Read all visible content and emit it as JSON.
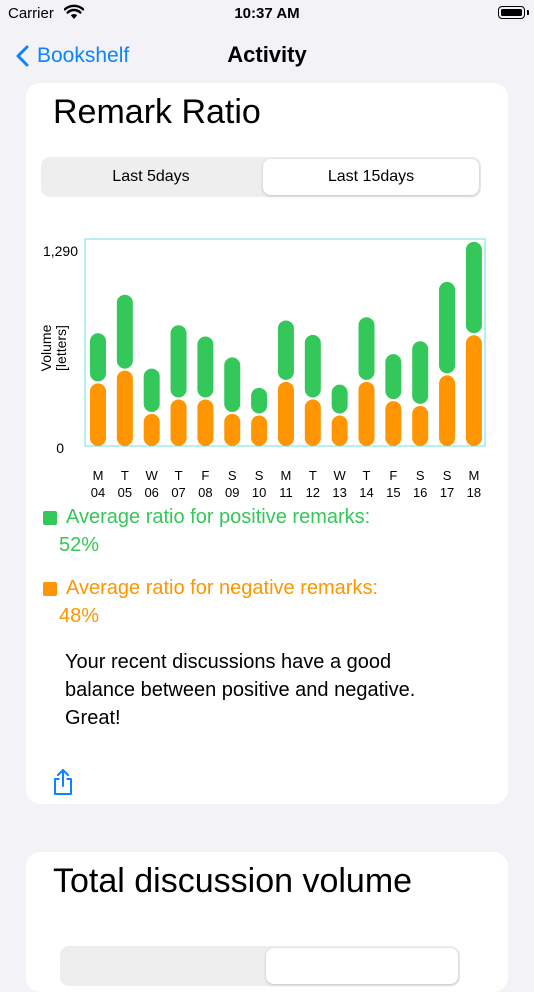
{
  "status_bar": {
    "carrier": "Carrier",
    "time": "10:37 AM"
  },
  "nav": {
    "back_label": "Bookshelf",
    "title": "Activity"
  },
  "remark_card": {
    "title": "Remark Ratio",
    "tabs": [
      {
        "label": "Last 5days",
        "selected": false
      },
      {
        "label": "Last 15days",
        "selected": true
      }
    ],
    "legend": {
      "positive_label": "Average ratio for positive remarks:",
      "positive_value": "52%",
      "negative_label": "Average ratio for negative remarks:",
      "negative_value": "48%"
    },
    "summary": "Your recent discussions have a good balance between positive and negative. Great!"
  },
  "volume_card": {
    "title": "Total discussion volume"
  },
  "colors": {
    "positive": "#34C759",
    "negative": "#FF9500",
    "accent": "#0A84FF",
    "plot_border": "#6FE1E1"
  },
  "chart_data": {
    "type": "bar",
    "stacked": true,
    "ylabel": "Volume [letters]",
    "ylim": [
      0,
      1290
    ],
    "ytick_labels": [
      "1,290",
      "0"
    ],
    "categories": [
      "M 04",
      "T 05",
      "W 06",
      "T 07",
      "F 08",
      "S 09",
      "S 10",
      "M 11",
      "T 12",
      "W 13",
      "T 14",
      "F 15",
      "S 16",
      "S 17",
      "M 18"
    ],
    "x_day_letters": [
      "M",
      "T",
      "W",
      "T",
      "F",
      "S",
      "S",
      "M",
      "T",
      "W",
      "T",
      "F",
      "S",
      "S",
      "M"
    ],
    "x_day_numbers": [
      "04",
      "05",
      "06",
      "07",
      "08",
      "09",
      "10",
      "11",
      "12",
      "13",
      "14",
      "15",
      "16",
      "17",
      "18"
    ],
    "series": [
      {
        "name": "negative",
        "color": "#FF9500",
        "values": [
          390,
          470,
          200,
          290,
          290,
          200,
          190,
          400,
          290,
          190,
          400,
          280,
          250,
          440,
          690
        ]
      },
      {
        "name": "positive",
        "color": "#34C759",
        "values": [
          300,
          460,
          270,
          450,
          380,
          340,
          160,
          370,
          390,
          180,
          390,
          280,
          390,
          570,
          570
        ]
      }
    ]
  }
}
